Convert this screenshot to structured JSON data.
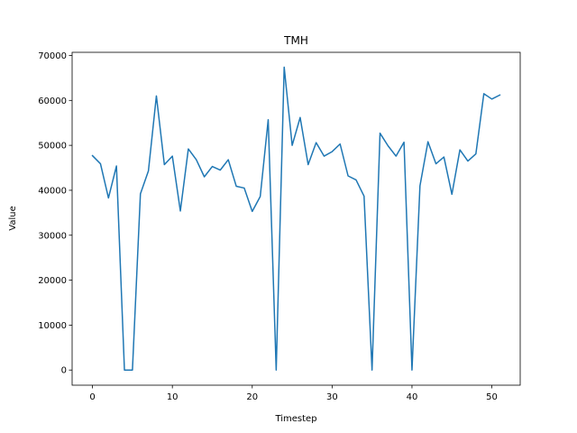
{
  "chart_data": {
    "type": "line",
    "title": "TMH",
    "xlabel": "Timestep",
    "ylabel": "Value",
    "xlim": [
      -2.55,
      53.55
    ],
    "ylim": [
      -3370,
      70700
    ],
    "xticks": [
      0,
      10,
      20,
      30,
      40,
      50
    ],
    "yticks": [
      0,
      10000,
      20000,
      30000,
      40000,
      50000,
      60000,
      70000
    ],
    "grid": false,
    "series": [
      {
        "color": "#1f77b4",
        "x": [
          0,
          1,
          2,
          3,
          4,
          5,
          6,
          7,
          8,
          9,
          10,
          11,
          12,
          13,
          14,
          15,
          16,
          17,
          18,
          19,
          20,
          21,
          22,
          23,
          24,
          25,
          26,
          27,
          28,
          29,
          30,
          31,
          32,
          33,
          34,
          35,
          36,
          37,
          38,
          39,
          40,
          41,
          42,
          43,
          44,
          45,
          46,
          47,
          48,
          49,
          50,
          51
        ],
        "values": [
          47700,
          45900,
          38300,
          45400,
          0,
          0,
          39200,
          44300,
          61000,
          45700,
          47600,
          35400,
          49200,
          46800,
          43000,
          45300,
          44500,
          46800,
          40900,
          40500,
          35300,
          38600,
          55700,
          0,
          67400,
          50000,
          56200,
          45700,
          50600,
          47600,
          48600,
          50300,
          43200,
          42300,
          38700,
          0,
          52700,
          49900,
          47600,
          50700,
          0,
          41000,
          50800,
          45900,
          47400,
          39100,
          49000,
          46500,
          48100,
          61500,
          60300,
          61200
        ]
      }
    ]
  }
}
